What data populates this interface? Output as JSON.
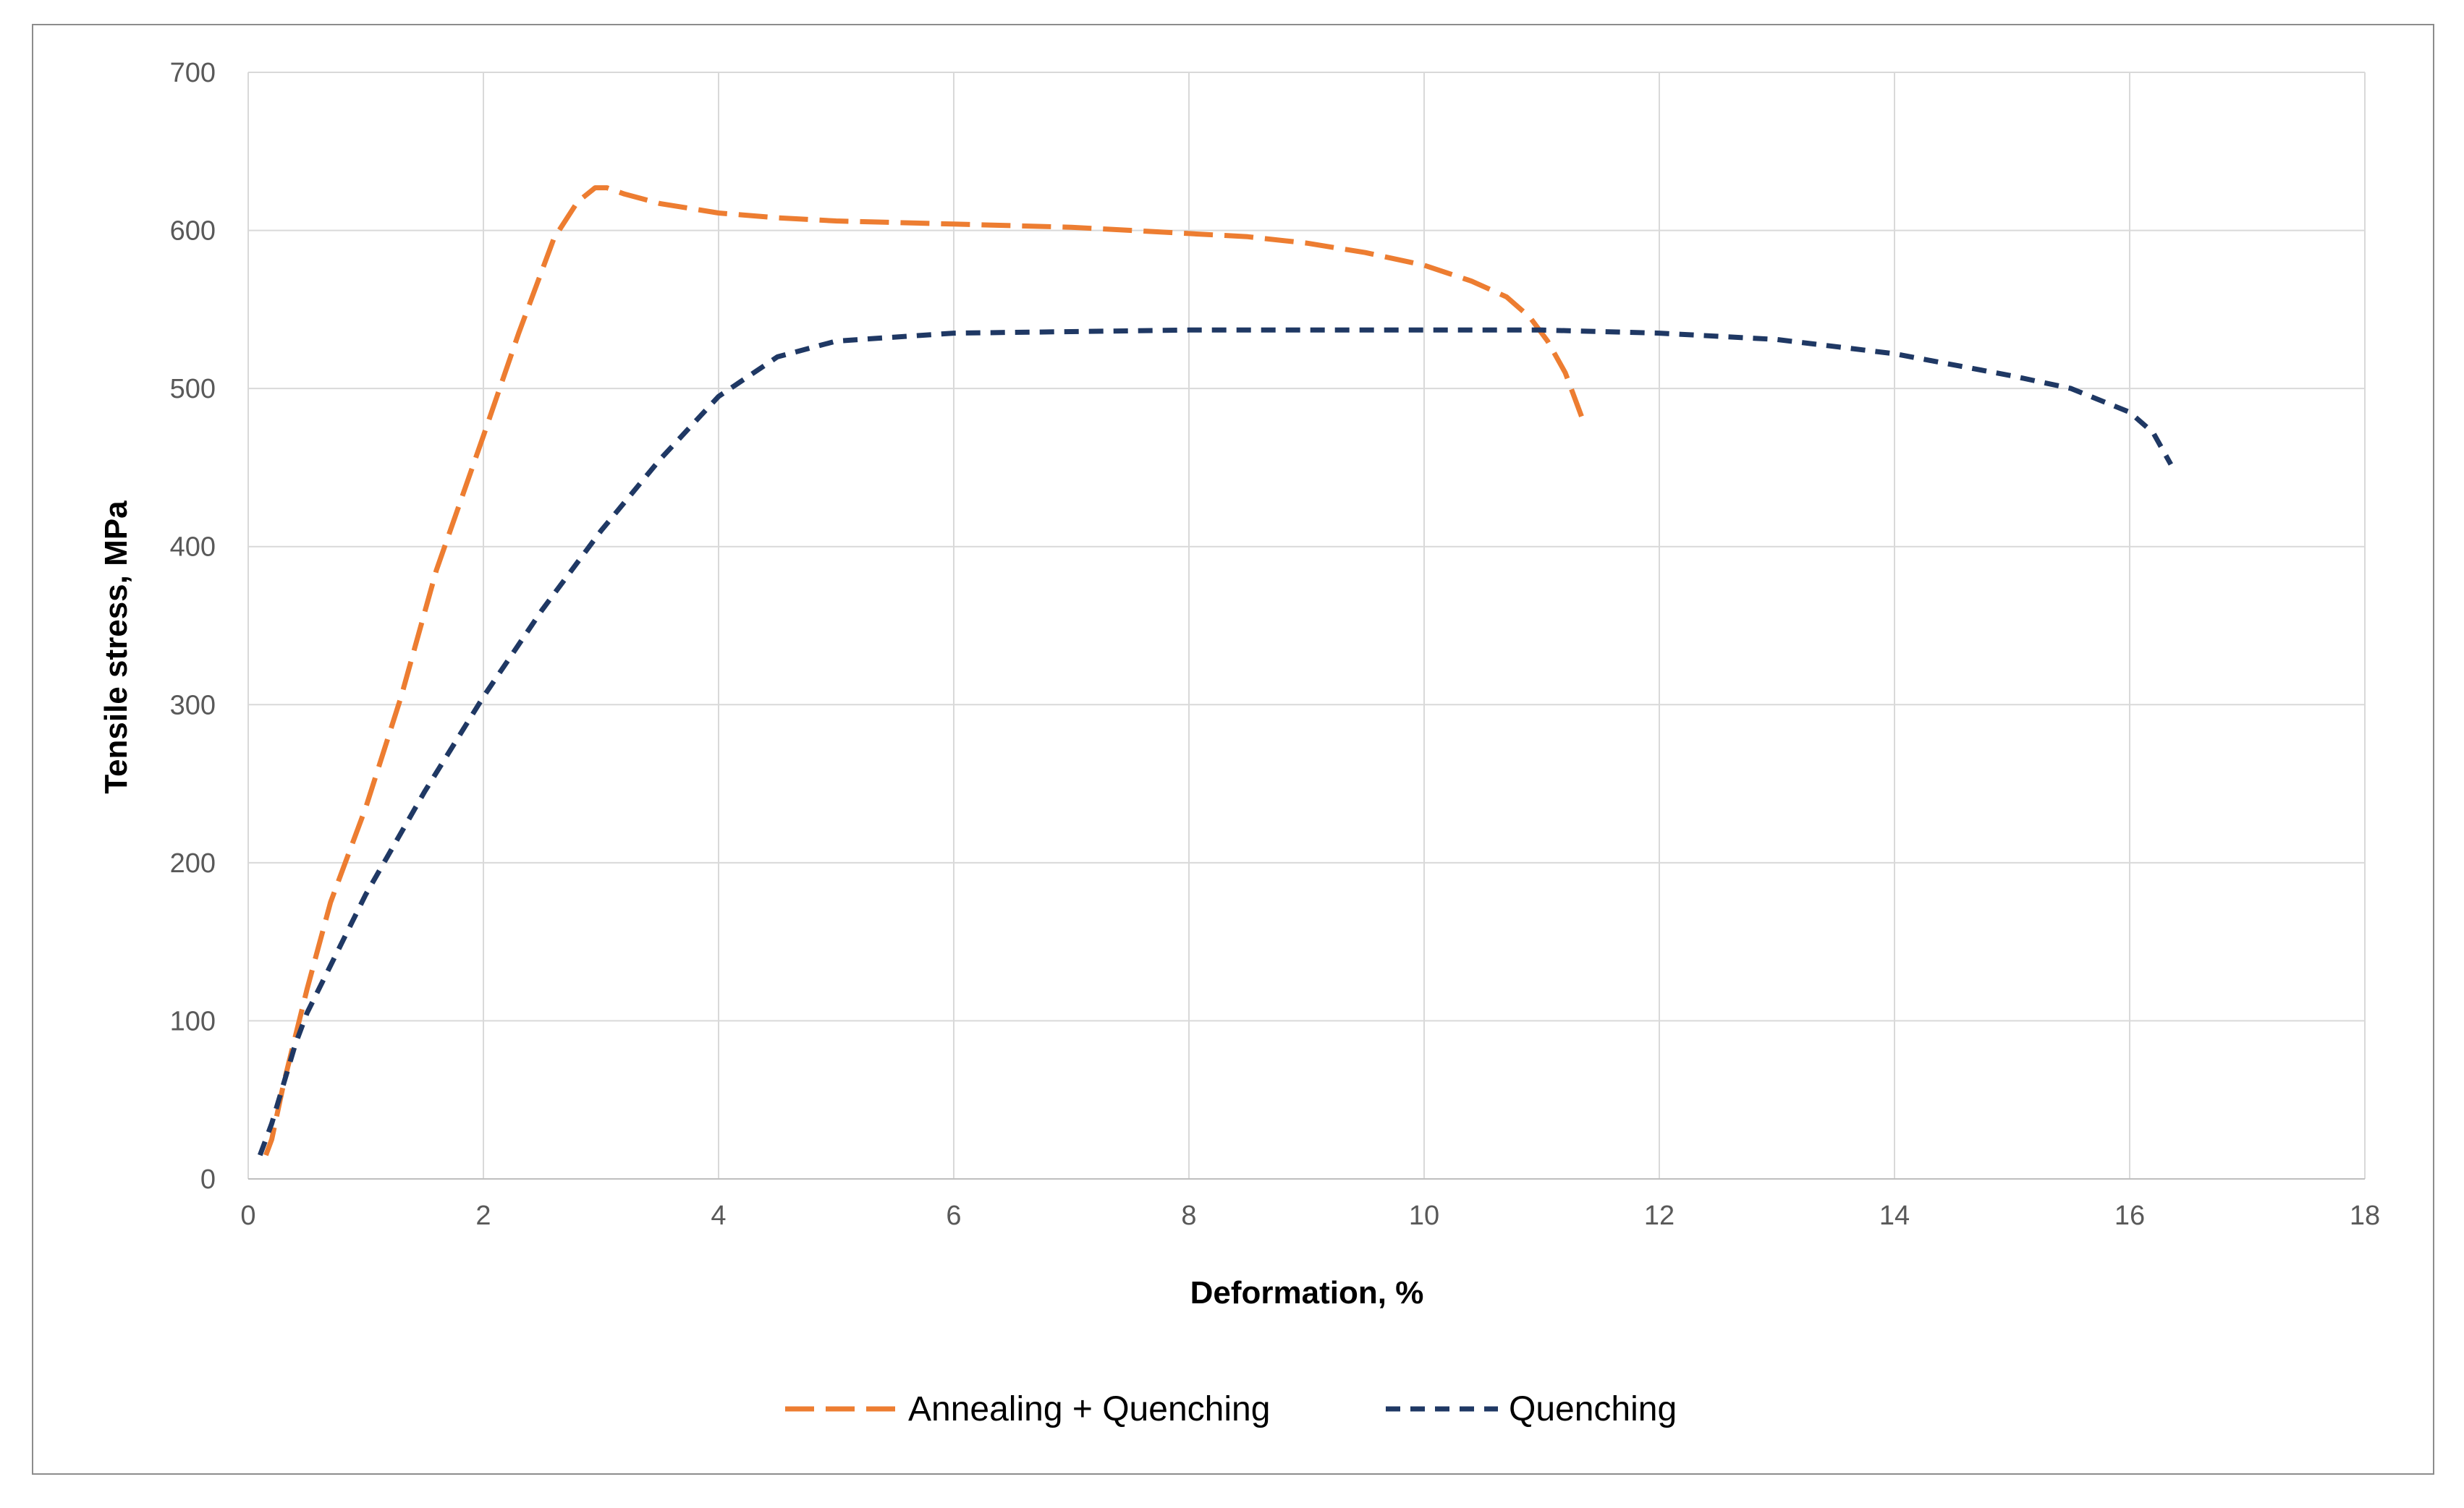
{
  "chart_data": {
    "type": "line",
    "title": "",
    "xlabel": "Deformation, %",
    "ylabel": "Tensile stress, MPa",
    "xlim": [
      0,
      18
    ],
    "ylim": [
      0,
      700
    ],
    "x_ticks": [
      "0",
      "2",
      "4",
      "6",
      "8",
      "10",
      "12",
      "14",
      "16",
      "18"
    ],
    "y_ticks": [
      "0",
      "100",
      "200",
      "300",
      "400",
      "500",
      "600",
      "700"
    ],
    "grid": true,
    "legend_position": "bottom",
    "series": [
      {
        "name": "Annealing + Quenching",
        "color": "#ed7d31",
        "dash": "long-dash",
        "points": [
          [
            0.15,
            15
          ],
          [
            0.2,
            25
          ],
          [
            0.3,
            60
          ],
          [
            0.5,
            120
          ],
          [
            0.7,
            175
          ],
          [
            1.0,
            235
          ],
          [
            1.3,
            305
          ],
          [
            1.6,
            385
          ],
          [
            2.0,
            470
          ],
          [
            2.3,
            535
          ],
          [
            2.6,
            595
          ],
          [
            2.8,
            618
          ],
          [
            2.95,
            627
          ],
          [
            3.05,
            627
          ],
          [
            3.2,
            623
          ],
          [
            3.5,
            617
          ],
          [
            4.0,
            611
          ],
          [
            4.5,
            608
          ],
          [
            5.0,
            606
          ],
          [
            6.0,
            604
          ],
          [
            7.0,
            602
          ],
          [
            8.0,
            598
          ],
          [
            8.5,
            596
          ],
          [
            9.0,
            592
          ],
          [
            9.5,
            586
          ],
          [
            10.0,
            578
          ],
          [
            10.4,
            568
          ],
          [
            10.7,
            558
          ],
          [
            10.9,
            545
          ],
          [
            11.05,
            530
          ],
          [
            11.2,
            510
          ],
          [
            11.3,
            490
          ],
          [
            11.35,
            480
          ]
        ]
      },
      {
        "name": "Quenching",
        "color": "#1f3864",
        "dash": "short-dash",
        "points": [
          [
            0.1,
            15
          ],
          [
            0.2,
            35
          ],
          [
            0.3,
            60
          ],
          [
            0.4,
            85
          ],
          [
            0.5,
            105
          ],
          [
            0.7,
            135
          ],
          [
            1.0,
            180
          ],
          [
            1.5,
            245
          ],
          [
            2.0,
            305
          ],
          [
            2.5,
            360
          ],
          [
            3.0,
            410
          ],
          [
            3.5,
            455
          ],
          [
            4.0,
            495
          ],
          [
            4.5,
            520
          ],
          [
            5.0,
            530
          ],
          [
            6.0,
            535
          ],
          [
            7.0,
            536
          ],
          [
            8.0,
            537
          ],
          [
            9.0,
            537
          ],
          [
            10.0,
            537
          ],
          [
            11.0,
            537
          ],
          [
            12.0,
            535
          ],
          [
            13.0,
            531
          ],
          [
            14.0,
            522
          ],
          [
            15.0,
            508
          ],
          [
            15.5,
            500
          ],
          [
            16.0,
            485
          ],
          [
            16.2,
            472
          ],
          [
            16.35,
            452
          ]
        ]
      }
    ]
  }
}
